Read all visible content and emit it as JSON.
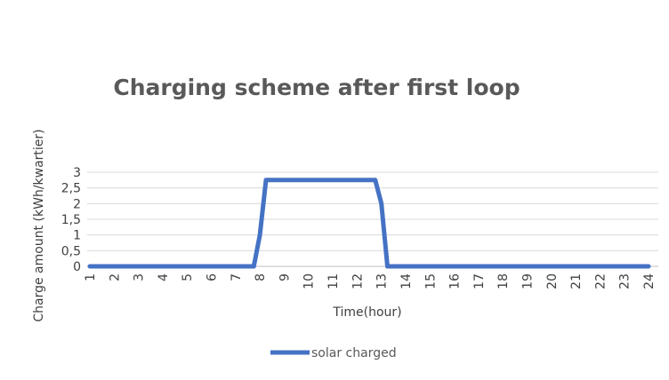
{
  "chart_data": {
    "type": "line",
    "title": "Charging scheme after first loop",
    "xlabel": "Time(hour)",
    "ylabel": "Charge amount (kWh/kwartier)",
    "x": [
      "1",
      "2",
      "3",
      "4",
      "5",
      "6",
      "7",
      "8",
      "9",
      "10",
      "11",
      "12",
      "13",
      "14",
      "15",
      "16",
      "17",
      "18",
      "19",
      "20",
      "21",
      "22",
      "23",
      "24"
    ],
    "y_ticks": [
      "0",
      "0,5",
      "1",
      "1,5",
      "2",
      "2,5",
      "3"
    ],
    "ylim": [
      0,
      3
    ],
    "grid": true,
    "legend_position": "bottom",
    "series": [
      {
        "name": "solar charged",
        "color": "#4472c4",
        "points": [
          [
            1,
            0
          ],
          [
            7.75,
            0
          ],
          [
            8,
            1
          ],
          [
            8.25,
            2.75
          ],
          [
            12.75,
            2.75
          ],
          [
            13,
            2
          ],
          [
            13.25,
            0
          ],
          [
            24,
            0
          ]
        ]
      }
    ]
  }
}
